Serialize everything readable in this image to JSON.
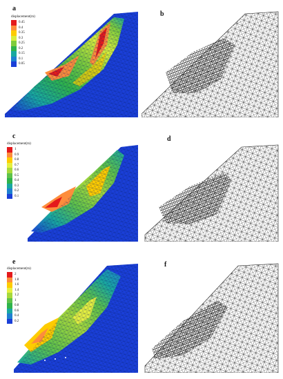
{
  "rows": [
    {
      "left_label": "a",
      "right_label": "b",
      "legend_title": "displacement(m)",
      "legend_values": [
        "0.45",
        "0.4",
        "0.35",
        "0.3",
        "0.25",
        "0.2",
        "0.15",
        "0.1",
        "0.05"
      ],
      "legend_colors": [
        "#e41a1c",
        "#fd8d3c",
        "#fecc00",
        "#d9ef3c",
        "#7fcd3c",
        "#2fb34b",
        "#19a8a0",
        "#1f80d0",
        "#1a3fd8"
      ]
    },
    {
      "left_label": "c",
      "right_label": "d",
      "legend_title": "displacement(m)",
      "legend_values": [
        "1",
        "0.9",
        "0.8",
        "0.7",
        "0.6",
        "0.5",
        "0.4",
        "0.3",
        "0.2",
        "0.1"
      ],
      "legend_colors": [
        "#e41a1c",
        "#fd8d3c",
        "#fecc00",
        "#e5f040",
        "#a6d93c",
        "#5ec24a",
        "#2fb34b",
        "#19a8a0",
        "#1f80d0",
        "#1a3fd8"
      ]
    },
    {
      "left_label": "e",
      "right_label": "f",
      "legend_title": "displacement(m)",
      "legend_values": [
        "2",
        "1.8",
        "1.6",
        "1.4",
        "1.2",
        "1",
        "0.8",
        "0.6",
        "0.4",
        "0.2"
      ],
      "legend_colors": [
        "#e41a1c",
        "#fd8d3c",
        "#fecc00",
        "#e5f040",
        "#a6d93c",
        "#5ec24a",
        "#2fb34b",
        "#19a8a0",
        "#1f80d0",
        "#1a3fd8"
      ]
    }
  ]
}
